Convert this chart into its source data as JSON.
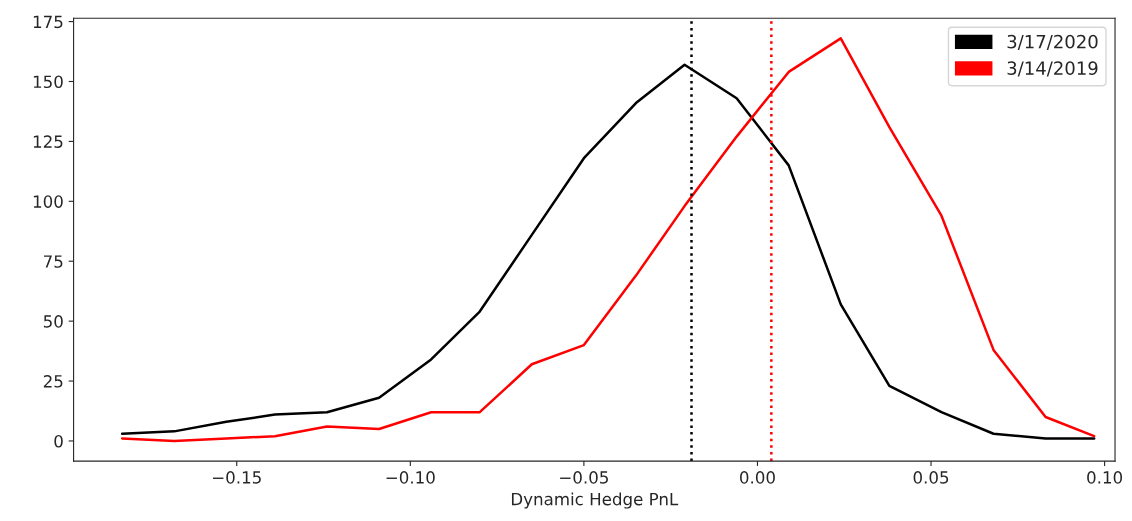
{
  "chart_data": {
    "type": "line",
    "xlabel": "Dynamic Hedge PnL",
    "x": [
      -0.183,
      -0.168,
      -0.153,
      -0.139,
      -0.124,
      -0.109,
      -0.094,
      -0.08,
      -0.065,
      -0.05,
      -0.035,
      -0.021,
      -0.006,
      0.009,
      0.024,
      0.038,
      0.053,
      0.068,
      0.083,
      0.097
    ],
    "series": [
      {
        "name": "3/17/2020",
        "color": "#000000",
        "values": [
          3,
          4,
          8,
          11,
          12,
          18,
          34,
          54,
          86,
          118,
          141,
          157,
          143,
          115,
          57,
          23,
          12,
          3,
          1,
          1
        ]
      },
      {
        "name": "3/14/2019",
        "color": "#ff0000",
        "values": [
          1,
          0,
          1,
          2,
          6,
          5,
          12,
          12,
          32,
          40,
          69,
          98,
          127,
          154,
          168,
          131,
          94,
          38,
          10,
          2
        ]
      }
    ],
    "ref_lines": [
      {
        "axis": "x",
        "value": -0.019,
        "color": "#000000",
        "line_style": "dotted"
      },
      {
        "axis": "x",
        "value": 0.004,
        "color": "#ff0000",
        "line_style": "dotted"
      }
    ],
    "xlim": [
      -0.197,
      0.103
    ],
    "xticks": [
      {
        "value": -0.15,
        "label": "−0.15"
      },
      {
        "value": -0.1,
        "label": "−0.10"
      },
      {
        "value": -0.05,
        "label": "−0.05"
      },
      {
        "value": 0,
        "label": "0.00"
      },
      {
        "value": 0.05,
        "label": "0.05"
      },
      {
        "value": 0.1,
        "label": "0.10"
      }
    ],
    "ylim": [
      -8.4,
      176.4
    ],
    "yticks": [
      0,
      25,
      50,
      75,
      100,
      125,
      150,
      175
    ],
    "grid": false,
    "legend": "top right",
    "marker": "none",
    "line_style": "solid"
  }
}
